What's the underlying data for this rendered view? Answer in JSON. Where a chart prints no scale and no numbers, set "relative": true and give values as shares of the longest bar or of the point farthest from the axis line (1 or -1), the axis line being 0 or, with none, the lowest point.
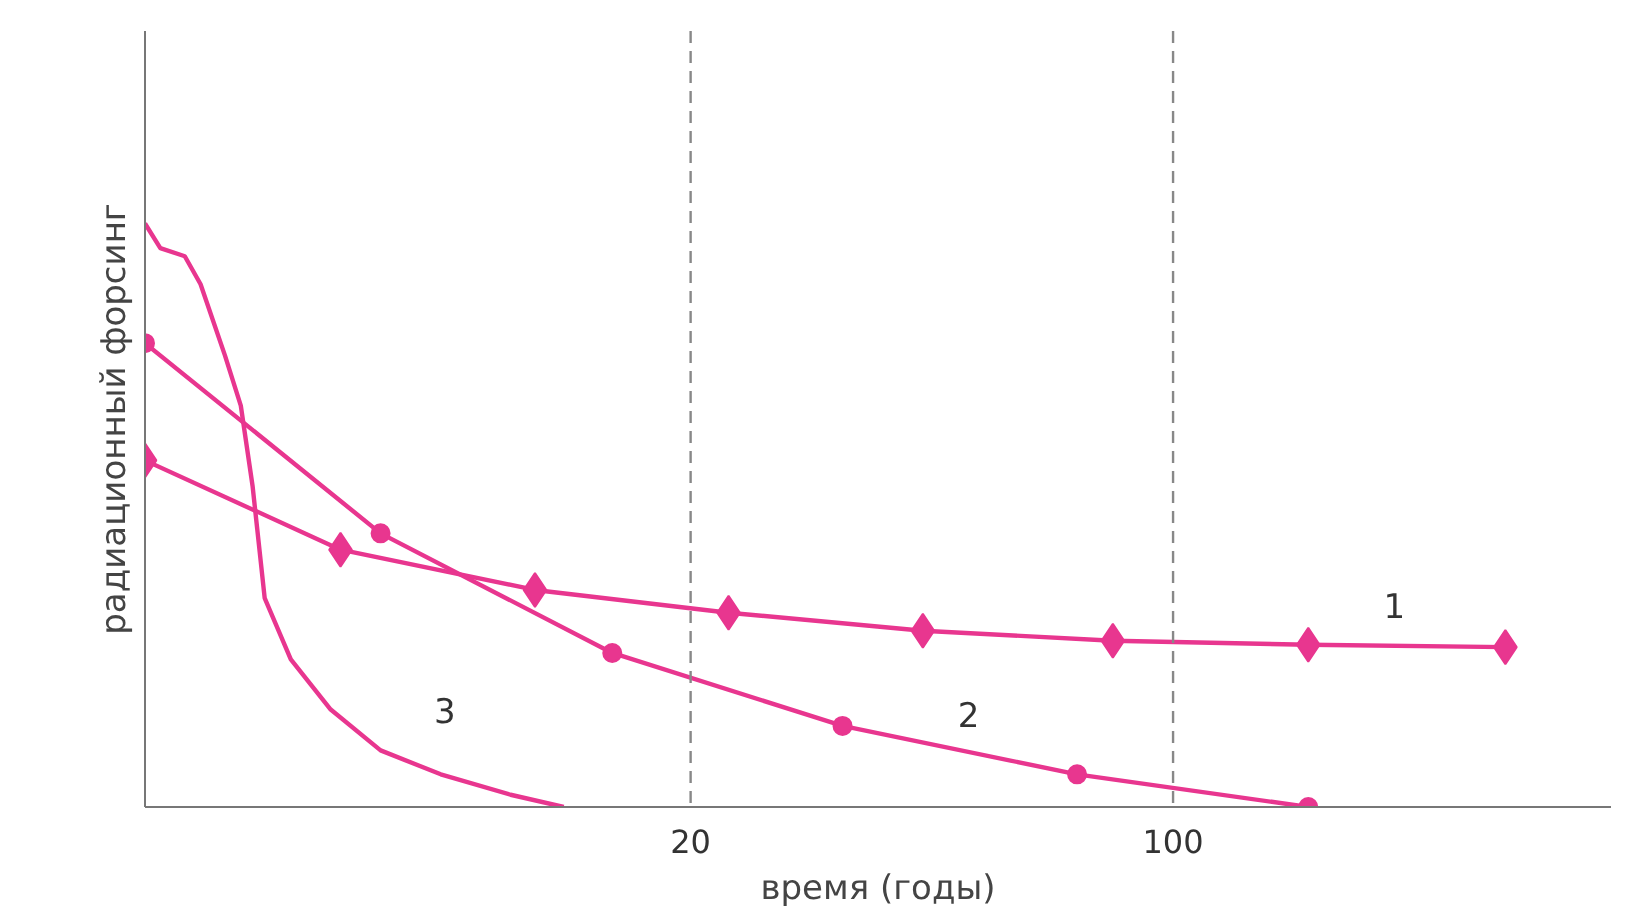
{
  "chart_data": {
    "type": "line",
    "relative": true,
    "xlabel": "время (годы)",
    "ylabel": "радиационный форсинг",
    "log": "x",
    "xlim": [
      3.24,
      431
    ],
    "xticks": [
      20,
      100
    ],
    "grid": false,
    "ref_lines": [
      {
        "axis": "x",
        "value": 20,
        "color": "#888888",
        "line_style": "dashed"
      },
      {
        "axis": "x",
        "value": 100,
        "color": "#888888",
        "line_style": "dashed"
      }
    ],
    "series": [
      {
        "name": "1",
        "color": "#e8368f",
        "marker": "diamond",
        "x": [
          3.24,
          6.22,
          11.9,
          22.7,
          43.4,
          81.8,
          157,
          303
        ],
        "values": [
          0.594,
          0.441,
          0.372,
          0.333,
          0.302,
          0.285,
          0.278,
          0.274
        ]
      },
      {
        "name": "2",
        "color": "#e8368f",
        "marker": "circle",
        "x": [
          3.24,
          7.11,
          15.4,
          33.2,
          72.6,
          157
        ],
        "values": [
          0.795,
          0.469,
          0.264,
          0.139,
          0.056,
          0
        ]
      },
      {
        "name": "3",
        "color": "#e8368f",
        "marker": "none",
        "x": [
          3.24,
          3.41,
          3.7,
          3.9,
          4.23,
          4.46,
          4.64,
          4.83,
          5.27,
          6.02,
          7.11,
          8.69,
          10.97,
          13.1
        ],
        "values": [
          1,
          0.958,
          0.944,
          0.896,
          0.774,
          0.688,
          0.549,
          0.358,
          0.253,
          0.167,
          0.097,
          0.056,
          0.021,
          0
        ]
      }
    ]
  }
}
